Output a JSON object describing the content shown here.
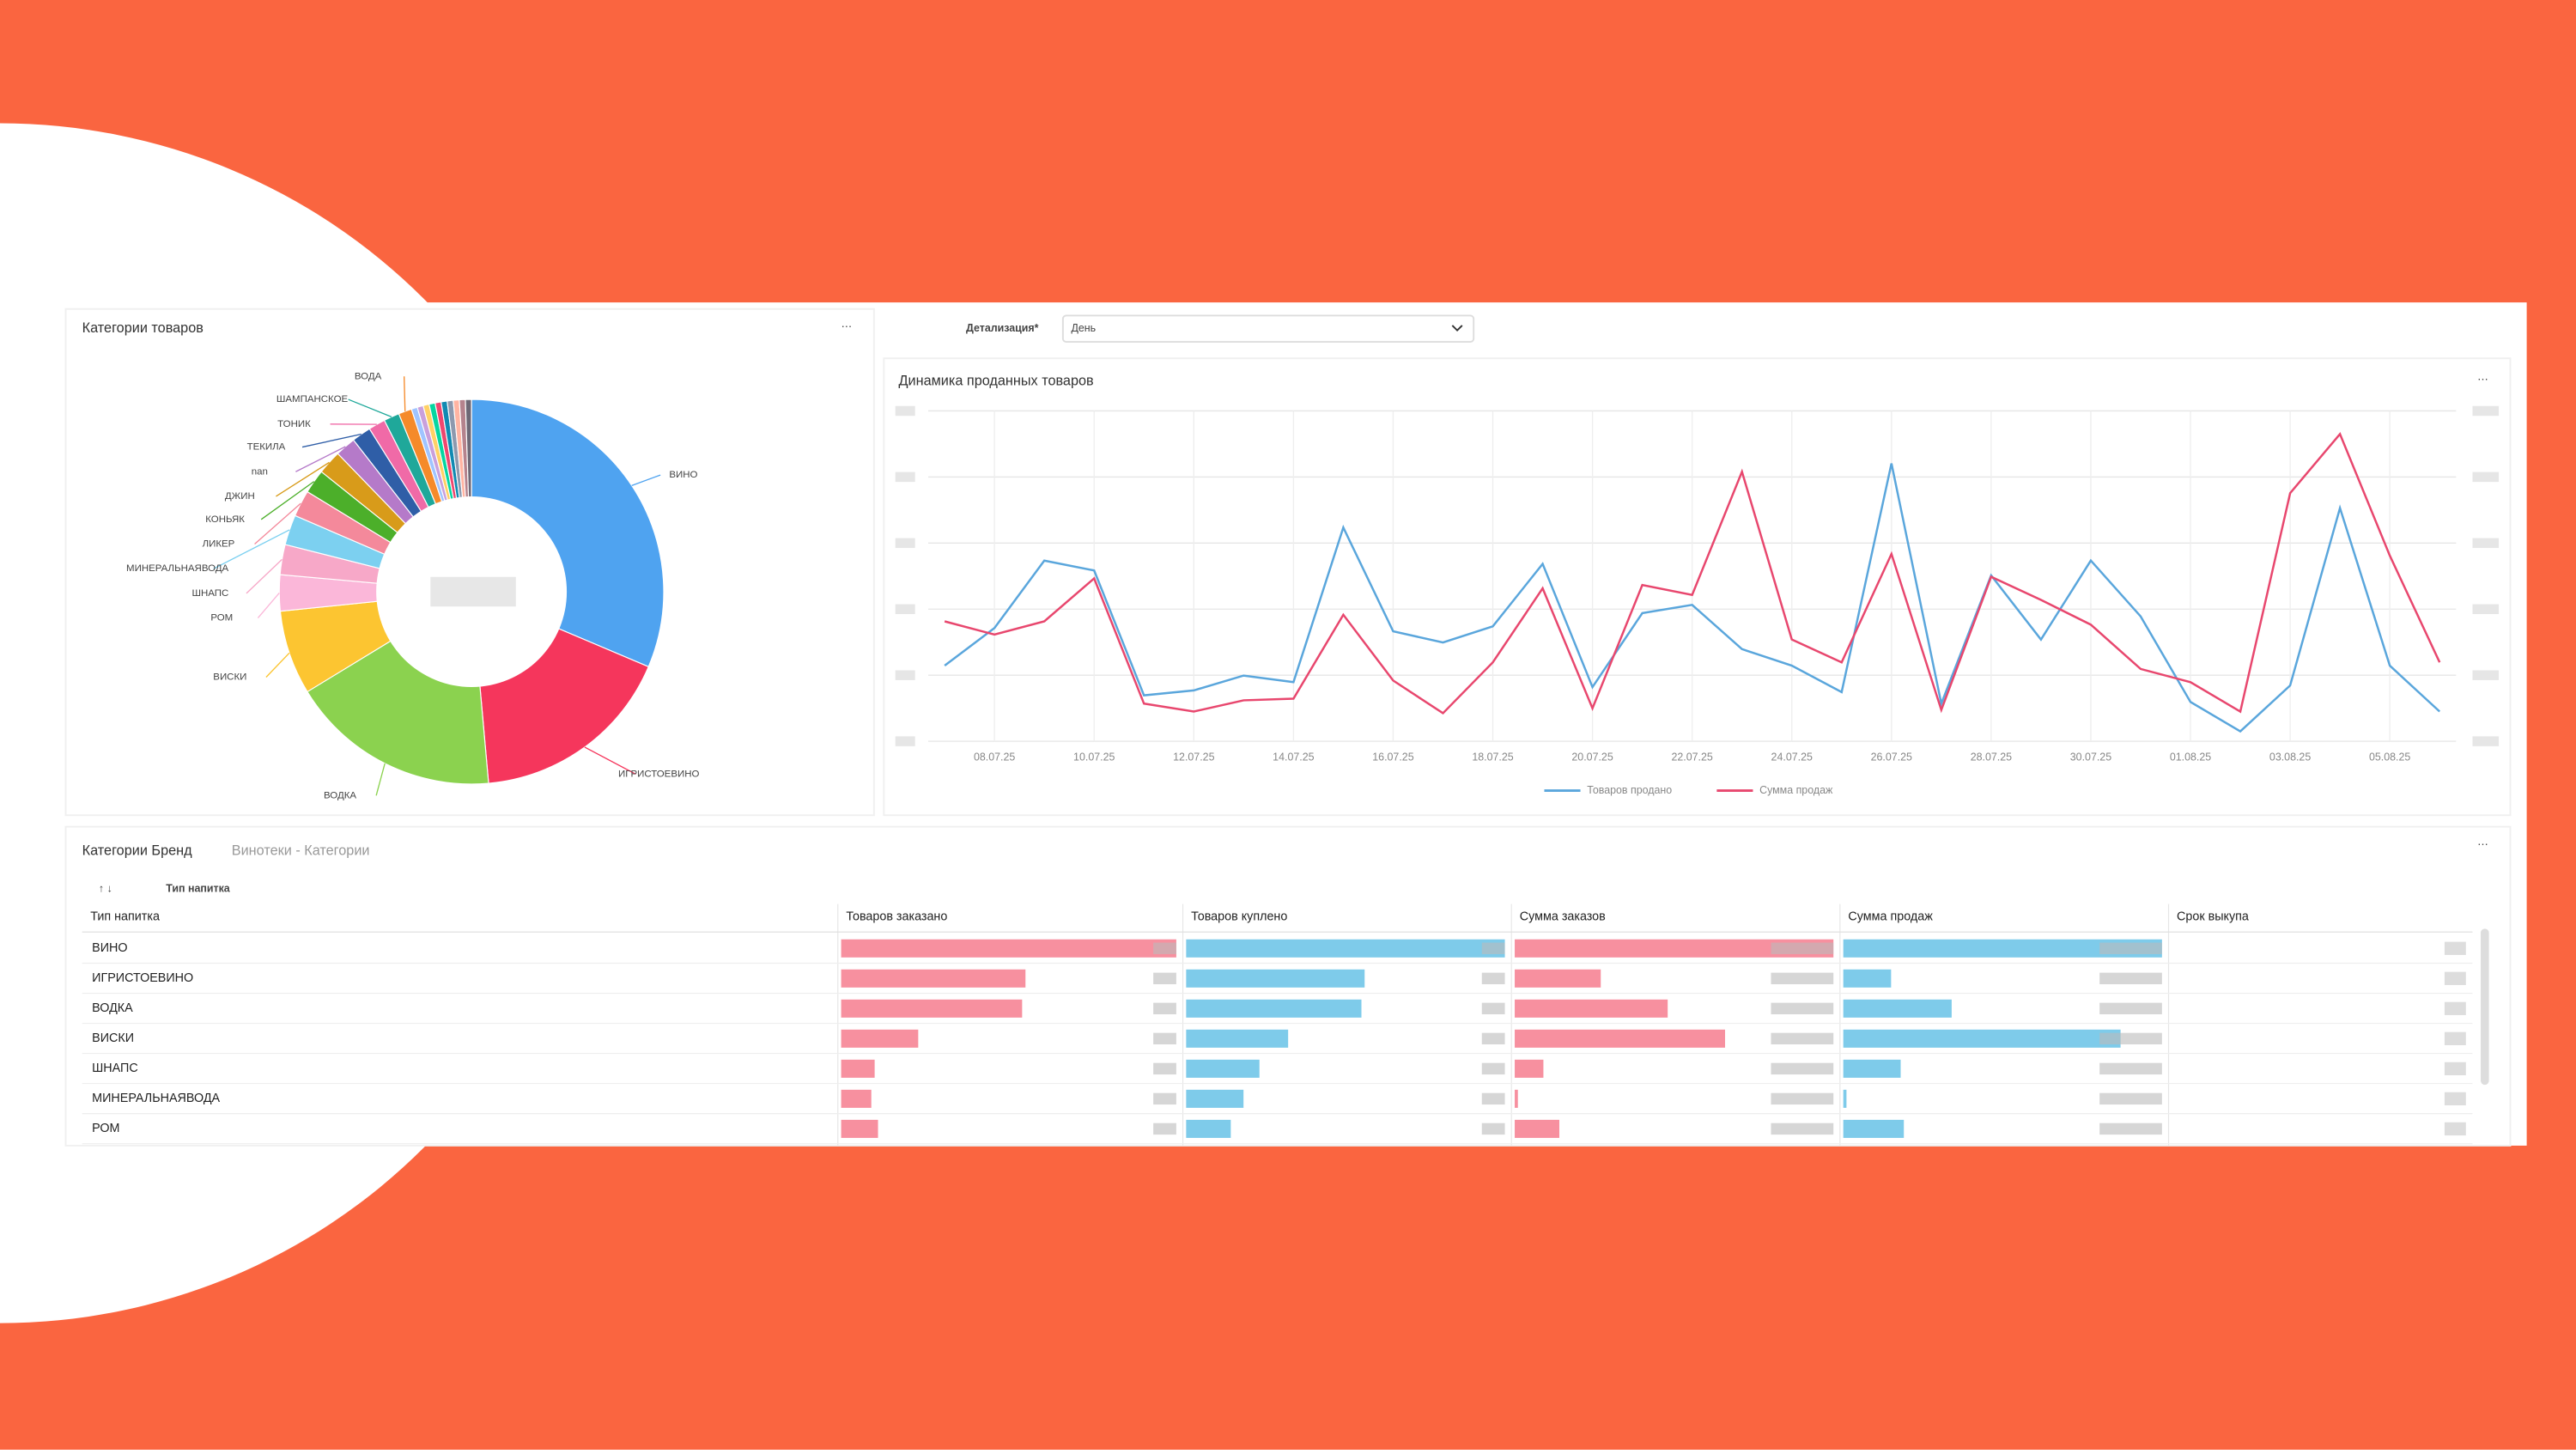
{
  "filter": {
    "label": "Детализация*",
    "value": "День"
  },
  "chart_data": [
    {
      "type": "pie",
      "title": "Категории товаров",
      "categories": [
        "ВИНО",
        "ИГРИСТОЕВИНО",
        "ВОДКА",
        "ВИСКИ",
        "РОМ",
        "ШНАПС",
        "МИНЕРАЛЬНАЯВОДА",
        "ЛИКЕР",
        "КОНЬЯК",
        "ДЖИН",
        "nan",
        "ТЕКИЛА",
        "ТОНИК",
        "ШАМПАНСКОЕ",
        "ВОДА",
        null,
        null,
        null,
        null,
        null,
        null,
        null,
        null,
        null,
        null
      ],
      "values": [
        31,
        17,
        17.5,
        7,
        3,
        2.5,
        2.5,
        2.2,
        2,
        2,
        1.7,
        1.6,
        1.4,
        1.3,
        1.1,
        0.5,
        0.5,
        0.5,
        0.5,
        0.5,
        0.5,
        0.5,
        0.5,
        0.5,
        0.5
      ],
      "colors": [
        "#4fa3f0",
        "#f5365c",
        "#8bd24f",
        "#fcc531",
        "#fbb7d9",
        "#f7a8c8",
        "#7cd0f0",
        "#f4899b",
        "#4caf2a",
        "#d89b1a",
        "#b57ac9",
        "#2f5ea7",
        "#f06aa7",
        "#1fa89a",
        "#f58a2a",
        "#a0c4ff",
        "#c9a0dc",
        "#ffd166",
        "#06d6a0",
        "#ef476f",
        "#118ab2",
        "#8d99ae",
        "#ffb4a2",
        "#b5838d",
        "#6d6875"
      ]
    },
    {
      "type": "line",
      "title": "Динамика проданных товаров",
      "categories": [
        null,
        "08.07.25",
        null,
        "10.07.25",
        null,
        "12.07.25",
        null,
        "14.07.25",
        null,
        "16.07.25",
        null,
        "18.07.25",
        null,
        "20.07.25",
        null,
        "22.07.25",
        null,
        "24.07.25",
        null,
        "26.07.25",
        null,
        "28.07.25",
        null,
        "30.07.25",
        null,
        "01.08.25",
        null,
        "03.08.25",
        null,
        "05.08.25",
        null
      ],
      "series": [
        {
          "name": "Товаров продано",
          "color": "#5aa6dc",
          "values": [
            22.9,
            34.3,
            54.7,
            51.7,
            13.9,
            15.4,
            19.9,
            17.9,
            64.7,
            33.3,
            29.9,
            34.8,
            53.7,
            16.4,
            38.8,
            41.3,
            27.9,
            22.9,
            14.9,
            84.1,
            11.4,
            50.2,
            30.8,
            54.7,
            37.8,
            11.9,
            3.0,
            16.9,
            70.6,
            22.9,
            9.0
          ]
        },
        {
          "name": "Сумма продаж",
          "color": "#e8476e",
          "values": [
            36.3,
            32.3,
            36.3,
            49.3,
            11.4,
            9.0,
            12.4,
            12.9,
            38.3,
            18.4,
            8.5,
            23.9,
            46.3,
            10.0,
            47.3,
            44.3,
            81.6,
            30.8,
            23.9,
            56.7,
            9.5,
            49.8,
            42.8,
            35.3,
            21.9,
            17.9,
            9.0,
            75.1,
            93.0,
            56.2,
            23.9
          ]
        }
      ],
      "ylim": [
        0,
        100
      ],
      "yticks": [
        0,
        20,
        40,
        60,
        80,
        100
      ],
      "grid": true,
      "legend": "bottom"
    }
  ],
  "table": {
    "title": "Категории Бренд",
    "subtitle": "Винотеки - Категории",
    "sort_label": "Тип напитка",
    "columns": [
      {
        "name": "Тип напитка"
      },
      {
        "name": "Товаров заказано",
        "color": "#f7909f"
      },
      {
        "name": "Товаров куплено",
        "color": "#7ecbea"
      },
      {
        "name": "Сумма заказов",
        "color": "#f7909f"
      },
      {
        "name": "Сумма продаж",
        "color": "#7ecbea"
      },
      {
        "name": "Срок выкупа"
      }
    ],
    "rows": [
      {
        "name": "ВИНО",
        "values": [
          100,
          100,
          100,
          100
        ]
      },
      {
        "name": "ИГРИСТОЕВИНО",
        "values": [
          55,
          56,
          27,
          15
        ]
      },
      {
        "name": "ВОДКА",
        "values": [
          54,
          55,
          48,
          34
        ]
      },
      {
        "name": "ВИСКИ",
        "values": [
          23,
          32,
          66,
          87
        ]
      },
      {
        "name": "ШНАПС",
        "values": [
          10,
          23,
          9,
          18
        ]
      },
      {
        "name": "МИНЕРАЛЬНАЯВОДА",
        "values": [
          9,
          18,
          1,
          1
        ]
      },
      {
        "name": "РОМ",
        "values": [
          11,
          14,
          14,
          19
        ]
      }
    ]
  }
}
